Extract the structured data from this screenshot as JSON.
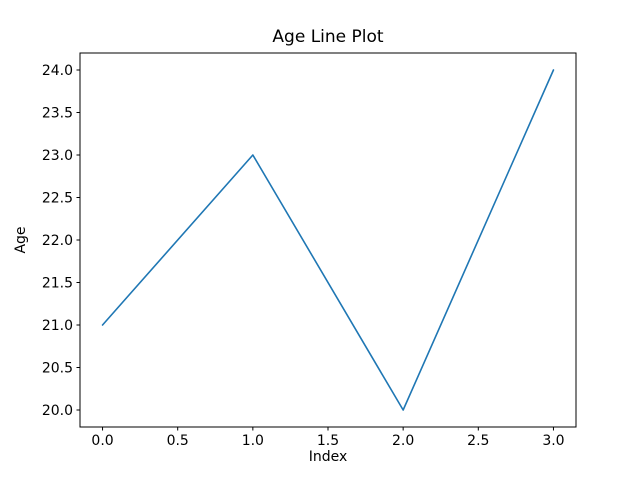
{
  "window": {
    "background": "#ffffff"
  },
  "chart_data": {
    "type": "line",
    "title": "Age Line Plot",
    "xlabel": "Index",
    "ylabel": "Age",
    "x": [
      0,
      1,
      2,
      3
    ],
    "y": [
      21,
      23,
      20,
      24
    ],
    "xlim": [
      -0.15,
      3.15
    ],
    "ylim": [
      19.8,
      24.2
    ],
    "xticks": [
      0.0,
      0.5,
      1.0,
      1.5,
      2.0,
      2.5,
      3.0
    ],
    "yticks": [
      20.0,
      20.5,
      21.0,
      21.5,
      22.0,
      22.5,
      23.0,
      23.5,
      24.0
    ],
    "xtick_labels": [
      "0.0",
      "0.5",
      "1.0",
      "1.5",
      "2.0",
      "2.5",
      "3.0"
    ],
    "ytick_labels": [
      "20.0",
      "20.5",
      "21.0",
      "21.5",
      "22.0",
      "22.5",
      "23.0",
      "23.5",
      "24.0"
    ],
    "line_color": "#1f77b4",
    "axis_color": "#000000",
    "grid": false,
    "legend_position": null
  }
}
